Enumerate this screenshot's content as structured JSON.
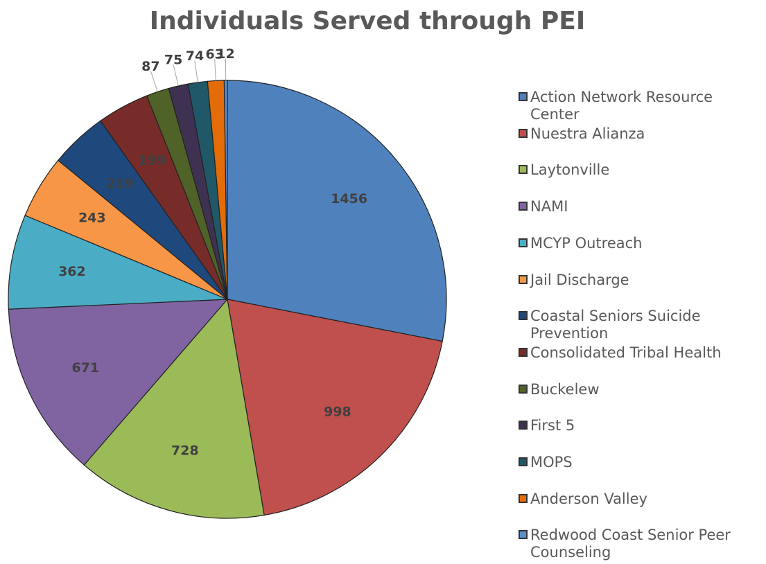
{
  "chart_data": {
    "type": "pie",
    "title": "Individuals Served through PEI",
    "categories": [
      "Action Network Resource Center",
      "Nuestra Alianza",
      "Laytonville",
      "NAMI",
      "MCYP Outreach",
      "Jail Discharge",
      "Coastal Seniors Suicide Prevention",
      "Consolidated Tribal Health",
      "Buckelew",
      "First 5",
      "MOPS",
      "Anderson Valley",
      "Redwood Coast Senior Peer Counseling"
    ],
    "values": [
      1456,
      998,
      728,
      671,
      362,
      243,
      219,
      199,
      87,
      75,
      74,
      63,
      12
    ],
    "colors": [
      "#4f81bd",
      "#c0504d",
      "#9bbb59",
      "#8064a2",
      "#4bacc6",
      "#f79646",
      "#1f497d",
      "#772c2a",
      "#4f6228",
      "#3f3151",
      "#205867",
      "#e36c09",
      "#5b8fd0"
    ],
    "legend": "right"
  }
}
